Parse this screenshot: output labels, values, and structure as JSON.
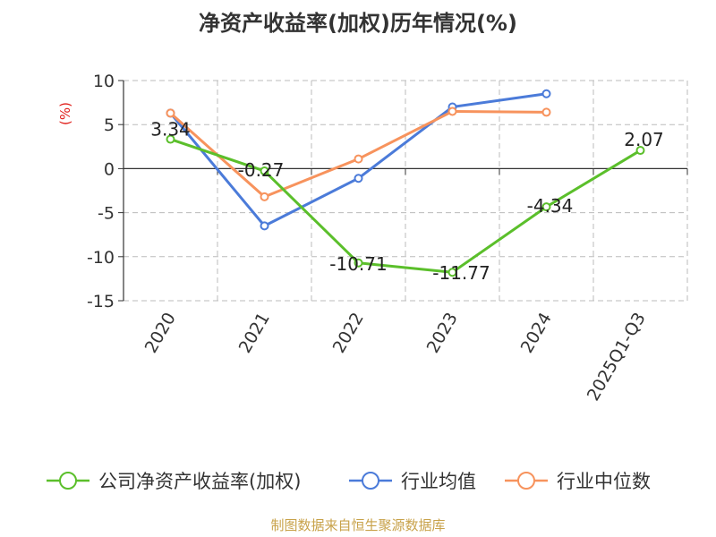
{
  "title": "净资产收益率(加权)历年情况(%)",
  "source": "制图数据来自恒生聚源数据库",
  "colors": {
    "company": "#5bbf2b",
    "industry_avg": "#4b7bd9",
    "industry_median": "#f7935d",
    "grid": "#bbbbbb",
    "unit": "#e0201b"
  },
  "chart_data": {
    "type": "line",
    "title": "净资产收益率(加权)历年情况(%)",
    "ylabel": "(%)",
    "xlabel": "",
    "categories": [
      "2020",
      "2021",
      "2022",
      "2023",
      "2024",
      "2025Q1-Q3"
    ],
    "ylim": [
      -15,
      10
    ],
    "yticks": [
      "10",
      "5",
      "0",
      "-5",
      "-10",
      "-15"
    ],
    "grid": true,
    "legend_position": "bottom",
    "series": [
      {
        "name": "公司净资产收益率(加权)",
        "values": [
          3.34,
          -0.27,
          -10.71,
          -11.77,
          -4.34,
          2.07
        ],
        "labels": [
          "3.34",
          "-0.27",
          "-10.71",
          "-11.77",
          "-4.34",
          "2.07"
        ]
      },
      {
        "name": "行业均值",
        "values": [
          6.3,
          -6.5,
          -1.1,
          7.0,
          8.5,
          null
        ]
      },
      {
        "name": "行业中位数",
        "values": [
          6.3,
          -3.2,
          1.1,
          6.5,
          6.4,
          null
        ]
      }
    ]
  }
}
